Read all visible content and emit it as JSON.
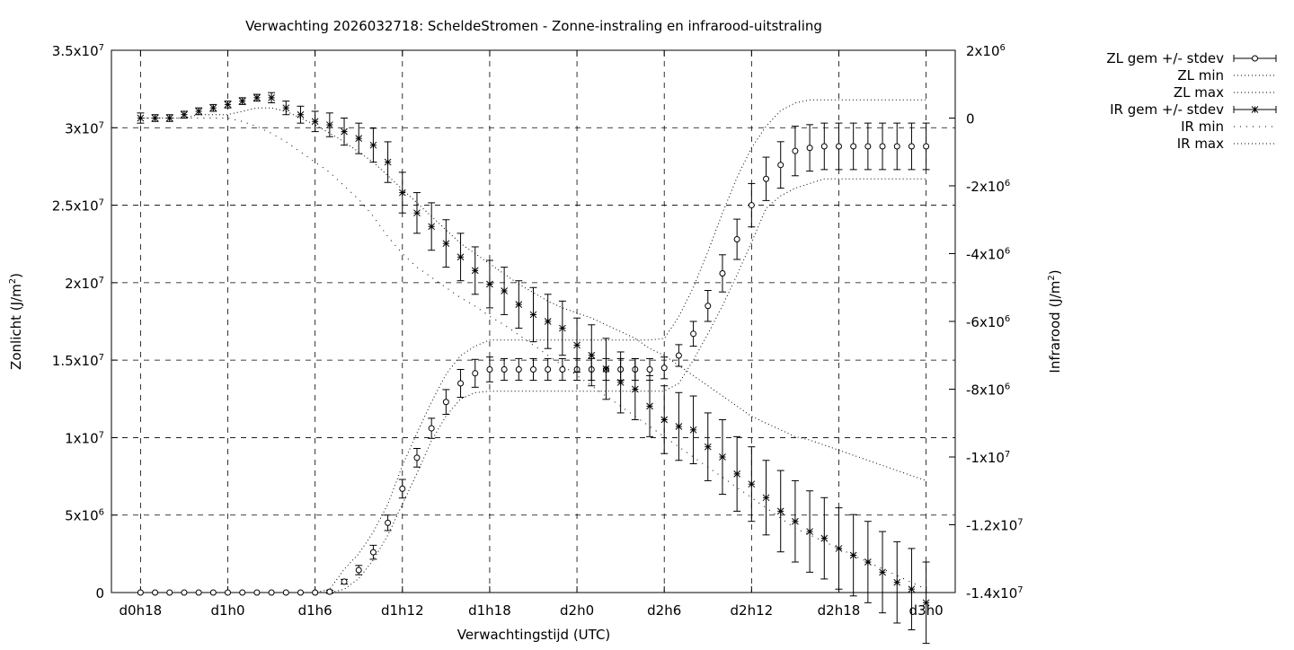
{
  "chart_data": {
    "type": "line",
    "title": "Verwachting 2026032718: ScheldeStromen - Zonne-instraling en infrarood-uitstraling",
    "xlabel": "Verwachtingstijd (UTC)",
    "ylabel_left": {
      "base": "Zonlicht (J/m",
      "sup": "2",
      "tail": ")"
    },
    "ylabel_right": {
      "base": "Infrarood (J/m",
      "sup": "2",
      "tail": ")"
    },
    "x_ticks": [
      "d0h18",
      "d1h0",
      "d1h6",
      "d1h12",
      "d1h18",
      "d2h0",
      "d2h6",
      "d2h12",
      "d2h18",
      "d3h0"
    ],
    "x_tick_hours": [
      18,
      24,
      30,
      36,
      42,
      48,
      54,
      60,
      66,
      72
    ],
    "xlim": [
      16,
      74
    ],
    "ylim_left": [
      0,
      35000000
    ],
    "ylim_right": [
      -14000000,
      2000000
    ],
    "y_ticks_left": [
      {
        "v": 0,
        "m": "0",
        "e": ""
      },
      {
        "v": 5000000,
        "m": "5x10",
        "e": "6"
      },
      {
        "v": 10000000,
        "m": "1x10",
        "e": "7"
      },
      {
        "v": 15000000,
        "m": "1.5x10",
        "e": "7"
      },
      {
        "v": 20000000,
        "m": "2x10",
        "e": "7"
      },
      {
        "v": 25000000,
        "m": "2.5x10",
        "e": "7"
      },
      {
        "v": 30000000,
        "m": "3x10",
        "e": "7"
      },
      {
        "v": 35000000,
        "m": "3.5x10",
        "e": "7"
      }
    ],
    "y_ticks_right": [
      {
        "v": 2000000,
        "m": "2x10",
        "e": "6"
      },
      {
        "v": 0,
        "m": "0",
        "e": ""
      },
      {
        "v": -2000000,
        "m": "-2x10",
        "e": "6"
      },
      {
        "v": -4000000,
        "m": "-4x10",
        "e": "6"
      },
      {
        "v": -6000000,
        "m": "-6x10",
        "e": "6"
      },
      {
        "v": -8000000,
        "m": "-8x10",
        "e": "6"
      },
      {
        "v": -10000000,
        "m": "-1x10",
        "e": "7"
      },
      {
        "v": -12000000,
        "m": "-1.2x10",
        "e": "7"
      },
      {
        "v": -14000000,
        "m": "-1.4x10",
        "e": "7"
      }
    ],
    "grid": true,
    "legend_position": "top-right outside",
    "legend": [
      {
        "label": "ZL gem +/- stdev",
        "style": "circle-errorbar"
      },
      {
        "label": "ZL min",
        "style": "dotted"
      },
      {
        "label": "ZL max",
        "style": "dotted"
      },
      {
        "label": "IR gem +/- stdev",
        "style": "star-errorbar"
      },
      {
        "label": "IR min",
        "style": "sparse-dotted"
      },
      {
        "label": "IR max",
        "style": "dotted"
      }
    ],
    "x_hours": [
      18,
      19,
      20,
      21,
      22,
      23,
      24,
      25,
      26,
      27,
      28,
      29,
      30,
      31,
      32,
      33,
      34,
      35,
      36,
      37,
      38,
      39,
      40,
      41,
      42,
      43,
      44,
      45,
      46,
      47,
      48,
      49,
      50,
      51,
      52,
      53,
      54,
      55,
      56,
      57,
      58,
      59,
      60,
      61,
      62,
      63,
      64,
      65,
      66,
      67,
      68,
      69,
      70,
      71,
      72
    ],
    "zl_mean": [
      0,
      0,
      0,
      0,
      0,
      0,
      0,
      0,
      0,
      0,
      0,
      0,
      0,
      50000,
      700000,
      1450000,
      2600000,
      4500000,
      6700000,
      8700000,
      10600000,
      12300000,
      13500000,
      14150000,
      14400000,
      14400000,
      14400000,
      14400000,
      14400000,
      14400000,
      14400000,
      14400000,
      14400000,
      14400000,
      14400000,
      14400000,
      14500000,
      15300000,
      16700000,
      18500000,
      20600000,
      22800000,
      25000000,
      26700000,
      27600000,
      28500000,
      28700000,
      28800000,
      28800000,
      28800000,
      28800000,
      28800000,
      28800000,
      28800000,
      28800000
    ],
    "zl_stdev": [
      0,
      0,
      0,
      0,
      0,
      0,
      0,
      0,
      0,
      0,
      0,
      0,
      0,
      100000,
      150000,
      300000,
      450000,
      500000,
      600000,
      600000,
      650000,
      800000,
      900000,
      900000,
      800000,
      700000,
      700000,
      700000,
      700000,
      700000,
      700000,
      700000,
      700000,
      700000,
      700000,
      700000,
      700000,
      700000,
      800000,
      1000000,
      1200000,
      1300000,
      1400000,
      1400000,
      1500000,
      1600000,
      1500000,
      1500000,
      1500000,
      1500000,
      1500000,
      1500000,
      1500000,
      1500000,
      1500000
    ],
    "ir_mean": [
      0,
      0,
      0,
      100000,
      200000,
      300000,
      400000,
      500000,
      600000,
      600000,
      300000,
      100000,
      -100000,
      -200000,
      -400000,
      -600000,
      -800000,
      -1300000,
      -2200000,
      -2800000,
      -3200000,
      -3700000,
      -4100000,
      -4500000,
      -4900000,
      -5100000,
      -5500000,
      -5800000,
      -6000000,
      -6200000,
      -6700000,
      -7000000,
      -7400000,
      -7800000,
      -8000000,
      -8500000,
      -8900000,
      -9100000,
      -9200000,
      -9700000,
      -10000000,
      -10500000,
      -10800000,
      -11200000,
      -11600000,
      -11900000,
      -12200000,
      -12400000,
      -12700000,
      -12900000,
      -13100000,
      -13400000,
      -13700000,
      -13900000,
      -14300000
    ],
    "ir_stdev": [
      150000,
      100000,
      100000,
      100000,
      100000,
      100000,
      100000,
      100000,
      100000,
      150000,
      200000,
      250000,
      300000,
      350000,
      400000,
      450000,
      500000,
      600000,
      600000,
      600000,
      700000,
      700000,
      700000,
      700000,
      700000,
      700000,
      700000,
      800000,
      800000,
      800000,
      800000,
      900000,
      900000,
      900000,
      900000,
      900000,
      1000000,
      1000000,
      1000000,
      1000000,
      1100000,
      1100000,
      1100000,
      1100000,
      1200000,
      1200000,
      1200000,
      1200000,
      1200000,
      1200000,
      1200000,
      1200000,
      1200000,
      1200000,
      1200000
    ],
    "zl_min": [
      0,
      0,
      0,
      0,
      0,
      0,
      0,
      0,
      0,
      0,
      0,
      0,
      0,
      0,
      200000,
      900000,
      2100000,
      3700000,
      5700000,
      7700000,
      9800000,
      11400000,
      12500000,
      12900000,
      13000000,
      13000000,
      13000000,
      13000000,
      13000000,
      13000000,
      13000000,
      13000000,
      13000000,
      13000000,
      13000000,
      13000000,
      13000000,
      13500000,
      15000000,
      16700000,
      18500000,
      20500000,
      22600000,
      24800000,
      25600000,
      26100000,
      26400000,
      26700000,
      26700000,
      26700000,
      26700000,
      26700000,
      26700000,
      26700000,
      26700000
    ],
    "zl_max": [
      0,
      0,
      0,
      0,
      0,
      0,
      0,
      0,
      0,
      0,
      0,
      0,
      0,
      200000,
      1500000,
      2500000,
      3900000,
      5700000,
      8200000,
      10300000,
      12300000,
      14100000,
      15300000,
      15900000,
      16300000,
      16300000,
      16300000,
      16300000,
      16300000,
      16300000,
      16300000,
      16300000,
      16300000,
      16300000,
      16300000,
      16300000,
      16400000,
      17800000,
      19700000,
      22000000,
      24500000,
      26800000,
      28700000,
      30100000,
      31100000,
      31600000,
      31800000,
      31800000,
      31800000,
      31800000,
      31800000,
      31800000,
      31800000,
      31800000,
      31800000
    ],
    "ir_min": [
      0,
      0,
      0,
      0,
      0,
      0,
      0,
      -100000,
      -250000,
      -450000,
      -700000,
      -1000000,
      -1300000,
      -1600000,
      -2000000,
      -2400000,
      -2900000,
      -3500000,
      -4000000,
      -4400000,
      -4700000,
      -5000000,
      -5300000,
      -5550000,
      -5850000,
      -6100000,
      -6400000,
      -6700000,
      -7000000,
      -7300000,
      -7600000,
      -7900000,
      -8200000,
      -8500000,
      -8800000,
      -9100000,
      -9400000,
      -9700000,
      -10000000,
      -10300000,
      -10600000,
      -10900000,
      -11200000,
      -11500000,
      -11800000,
      -12100000,
      -12300000,
      -12500000,
      -12700000,
      -12900000,
      -13100000,
      -13300000,
      -13500000,
      -13700000,
      -13900000
    ],
    "ir_max": [
      0,
      0,
      0,
      0,
      100000,
      100000,
      100000,
      200000,
      300000,
      300000,
      200000,
      0,
      -200000,
      -450000,
      -700000,
      -1000000,
      -1300000,
      -1700000,
      -2100000,
      -2500000,
      -2900000,
      -3300000,
      -3700000,
      -4000000,
      -4300000,
      -4600000,
      -4900000,
      -5150000,
      -5400000,
      -5600000,
      -5750000,
      -5900000,
      -6100000,
      -6300000,
      -6500000,
      -6800000,
      -7000000,
      -7300000,
      -7600000,
      -7900000,
      -8200000,
      -8500000,
      -8800000,
      -9000000,
      -9200000,
      -9400000,
      -9500000,
      -9650000,
      -9800000,
      -9950000,
      -10100000,
      -10250000,
      -10400000,
      -10550000,
      -10700000
    ]
  }
}
